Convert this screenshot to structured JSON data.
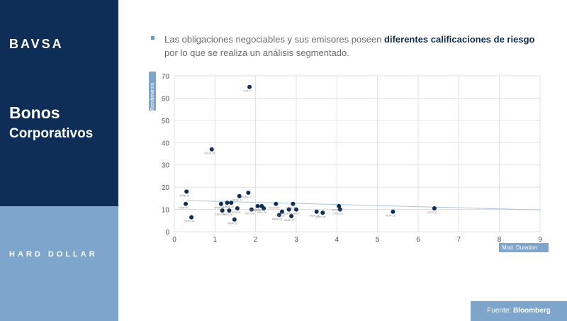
{
  "brand": {
    "logo": "BAVSA"
  },
  "sidebar": {
    "title_line1": "Bonos",
    "title_line2": "Corporativos",
    "section": "HARD DOLLAR"
  },
  "headline": {
    "text_before": "Las obligaciones negociables y sus emisores poseen ",
    "bold1": "diferentes calificaciones de riesgo",
    "text_after": " por lo que se realiza un análisis segmentado."
  },
  "source": {
    "prefix": "Fuente: ",
    "name": "Bloomberg"
  },
  "colors": {
    "navy": "#0e2e57",
    "light_blue": "#7ea6cc",
    "point": "#0e2e57",
    "trend": "#a9c4e0"
  },
  "chart_data": {
    "type": "scatter",
    "xlabel": "Mod. Duration",
    "ylabel": "Rendimiento",
    "xlim": [
      0,
      9
    ],
    "ylim": [
      0,
      70
    ],
    "x_ticks": [
      0,
      1,
      2,
      3,
      4,
      5,
      6,
      7,
      8,
      9
    ],
    "y_ticks": [
      0,
      10,
      20,
      30,
      40,
      50,
      60,
      70
    ],
    "grid": true,
    "trendline": {
      "x": [
        0.3,
        9
      ],
      "y": [
        14.0,
        9.8
      ]
    },
    "points": [
      {
        "x": 1.85,
        "y": 65,
        "label": "CLR.27"
      },
      {
        "x": 0.92,
        "y": 37,
        "label": "RSUH.25"
      },
      {
        "x": 0.3,
        "y": 18,
        "label": "YPFD.24"
      },
      {
        "x": 0.28,
        "y": 12.5,
        "label": "PAMP.24"
      },
      {
        "x": 0.42,
        "y": 6.5,
        "label": "CAPX.24"
      },
      {
        "x": 1.15,
        "y": 12.5,
        "label": "YPFD.25"
      },
      {
        "x": 1.3,
        "y": 13,
        "label": "EDNA.26"
      },
      {
        "x": 1.18,
        "y": 9.5,
        "label": "CAPX.26"
      },
      {
        "x": 1.4,
        "y": 13,
        "label": "IRSA.26"
      },
      {
        "x": 1.6,
        "y": 16,
        "label": "GENE.27"
      },
      {
        "x": 1.35,
        "y": 9.5,
        "label": "TGNO.26"
      },
      {
        "x": 1.48,
        "y": 5.5,
        "label": "PAMP.26"
      },
      {
        "x": 1.55,
        "y": 10.5,
        "label": "TGSU.26"
      },
      {
        "x": 1.82,
        "y": 17.5,
        "label": "MSAN.27"
      },
      {
        "x": 1.9,
        "y": 10,
        "label": "IRCP.26"
      },
      {
        "x": 2.05,
        "y": 11.5,
        "label": "MSAN.27"
      },
      {
        "x": 2.15,
        "y": 11.5,
        "label": "AERO.26"
      },
      {
        "x": 2.2,
        "y": 10.5,
        "label": "IRSA.28"
      },
      {
        "x": 2.5,
        "y": 12.5,
        "label": "TECO.26"
      },
      {
        "x": 2.58,
        "y": 7.5,
        "label": "PAMP.26"
      },
      {
        "x": 2.65,
        "y": 9,
        "label": "YPFD.27"
      },
      {
        "x": 2.82,
        "y": 10,
        "label": "GENE.27"
      },
      {
        "x": 2.88,
        "y": 7,
        "label": "PAMP.27"
      },
      {
        "x": 2.92,
        "y": 12.5,
        "label": "YPFD.27"
      },
      {
        "x": 3.0,
        "y": 10,
        "label": "TRAN.27"
      },
      {
        "x": 3.5,
        "y": 9,
        "label": "IRSA.26"
      },
      {
        "x": 3.65,
        "y": 8.5,
        "label": "CAPX.28"
      },
      {
        "x": 4.05,
        "y": 11.5,
        "label": "YPFD.29"
      },
      {
        "x": 4.08,
        "y": 10,
        "label": "CRES.25"
      },
      {
        "x": 5.38,
        "y": 9,
        "label": "AERO.31"
      },
      {
        "x": 6.4,
        "y": 10.5,
        "label": "YPFD.33"
      }
    ]
  }
}
